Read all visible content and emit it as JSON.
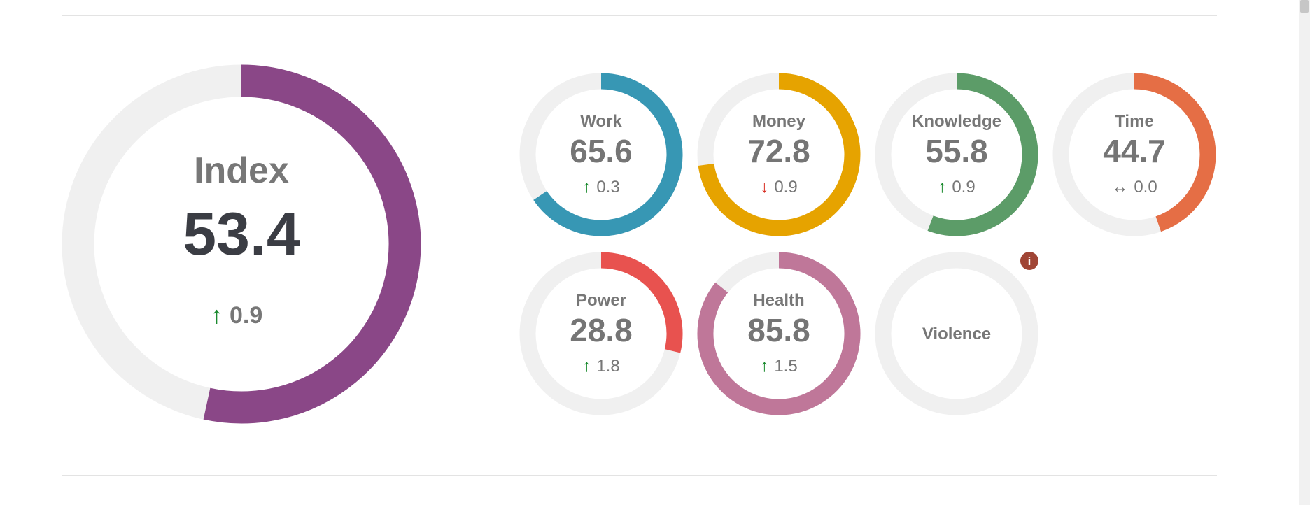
{
  "chart_data": {
    "type": "donut",
    "max": 100,
    "track_color": "#f0f0f0",
    "index": {
      "label": "Index",
      "value": "53.4",
      "fraction": 0.534,
      "color": "#8a4787",
      "change": {
        "direction": "up",
        "arrow": "↑",
        "text": "0.9",
        "arrow_color": "#1a8a2e"
      }
    },
    "components": [
      {
        "label": "Work",
        "value": "65.6",
        "fraction": 0.656,
        "color": "#3797b4",
        "change": {
          "direction": "up",
          "arrow": "↑",
          "text": "0.3",
          "arrow_color": "#1a8a2e"
        }
      },
      {
        "label": "Money",
        "value": "72.8",
        "fraction": 0.728,
        "color": "#e6a300",
        "change": {
          "direction": "down",
          "arrow": "↓",
          "text": "0.9",
          "arrow_color": "#d93025"
        }
      },
      {
        "label": "Knowledge",
        "value": "55.8",
        "fraction": 0.558,
        "color": "#5c9c68",
        "change": {
          "direction": "up",
          "arrow": "↑",
          "text": "0.9",
          "arrow_color": "#1a8a2e"
        }
      },
      {
        "label": "Time",
        "value": "44.7",
        "fraction": 0.447,
        "color": "#e56e45",
        "change": {
          "direction": "flat",
          "arrow": "↔",
          "text": "0.0",
          "arrow_color": "#666666"
        }
      },
      {
        "label": "Power",
        "value": "28.8",
        "fraction": 0.288,
        "color": "#e8524f",
        "change": {
          "direction": "up",
          "arrow": "↑",
          "text": "1.8",
          "arrow_color": "#1a8a2e"
        }
      },
      {
        "label": "Health",
        "value": "85.8",
        "fraction": 0.858,
        "color": "#bf7799",
        "change": {
          "direction": "up",
          "arrow": "↑",
          "text": "1.5",
          "arrow_color": "#1a8a2e"
        }
      },
      {
        "label": "Violence",
        "value": null,
        "fraction": 0,
        "color": "#cccccc",
        "change": null,
        "info_icon": "info-icon",
        "info_color": "#a04535"
      }
    ]
  }
}
